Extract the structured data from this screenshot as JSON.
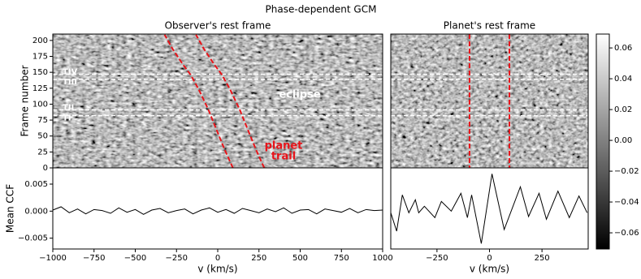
{
  "title": "Phase-dependent GCM",
  "chart_data": [
    {
      "type": "heatmap",
      "title": "Observer's rest frame",
      "ylabel": "Frame number",
      "xlim": [
        -1000,
        1000
      ],
      "ylim": [
        0,
        210
      ],
      "yticks": [
        0,
        25,
        50,
        75,
        100,
        125,
        150,
        175,
        200
      ],
      "markers": [
        {
          "label": "TIV",
          "value": 147
        },
        {
          "label": "TIII",
          "value": 139
        },
        {
          "label": "TII",
          "value": 91
        },
        {
          "label": "TI",
          "value": 82
        }
      ],
      "trail": {
        "color": "#e8141a",
        "frames": [
          0,
          28,
          59,
          91,
          123,
          146,
          163,
          186,
          209
        ],
        "velocity": [
          187,
          138,
          89,
          39,
          -20,
          -69,
          -118,
          -177,
          -227
        ]
      },
      "trail_offsets": [
        -95,
        95
      ],
      "annotations": {
        "eclipse": "eclipse",
        "planet_trail": [
          "planet",
          "trail"
        ]
      }
    },
    {
      "type": "line",
      "ylabel": "Mean CCF",
      "xlabel": "v (km/s)",
      "color": "#000000",
      "xlim": [
        -1000,
        1000
      ],
      "xticks": [
        {
          "value": -1000,
          "label": "−1000"
        },
        {
          "value": -750,
          "label": "−750"
        },
        {
          "value": -500,
          "label": "−500"
        },
        {
          "value": -250,
          "label": "−250"
        },
        0,
        250,
        500,
        750,
        1000
      ],
      "ylim": [
        -0.007,
        0.008
      ],
      "yticks": [
        {
          "value": -0.005,
          "label": "−0.005"
        },
        {
          "value": 0,
          "label": "0.000"
        },
        0.005
      ],
      "x": [
        -1000,
        -950,
        -900,
        -850,
        -800,
        -750,
        -700,
        -650,
        -600,
        -550,
        -500,
        -450,
        -400,
        -350,
        -300,
        -250,
        -200,
        -150,
        -100,
        -50,
        0,
        50,
        100,
        150,
        200,
        250,
        300,
        350,
        400,
        450,
        500,
        550,
        600,
        650,
        700,
        750,
        800,
        850,
        900,
        950,
        1000
      ],
      "values": [
        0.0002,
        0.0008,
        -0.0003,
        0.0004,
        -0.0005,
        0.0003,
        0.0001,
        -0.0004,
        0.0006,
        -0.0002,
        0.0003,
        -0.0006,
        0.0002,
        0.0005,
        -0.0003,
        0.0001,
        0.0004,
        -0.0005,
        0.0002,
        0.0006,
        -0.0002,
        0.0003,
        -0.0004,
        0.0005,
        0.0001,
        -0.0003,
        0.0004,
        -0.0001,
        0.0006,
        -0.0004,
        0.0002,
        0.0003,
        -0.0005,
        0.0004,
        0.0001,
        -0.0002,
        0.0005,
        -0.0003,
        0.0003,
        0.0001,
        0.0002
      ]
    },
    {
      "type": "heatmap",
      "title": "Planet's rest frame",
      "xlim": [
        -470,
        470
      ],
      "ylim": [
        0,
        210
      ],
      "lines": {
        "color": "#e8141a",
        "values": [
          -95,
          95
        ]
      }
    },
    {
      "type": "line",
      "xlabel": "v (km/s)",
      "color": "#000000",
      "xlim": [
        -470,
        470
      ],
      "xticks": [
        {
          "value": -250,
          "label": "−250"
        },
        0,
        250
      ],
      "ylim": [
        -0.007,
        0.008
      ],
      "x": [
        -470,
        -442,
        -415,
        -384,
        -353,
        -337,
        -310,
        -260,
        -229,
        -182,
        -136,
        -105,
        -85,
        -39,
        12,
        70,
        147,
        186,
        236,
        271,
        326,
        380,
        426,
        465
      ],
      "values": [
        -0.0003,
        -0.0037,
        0.003,
        -0.0003,
        0.0021,
        -0.0003,
        0.0009,
        -0.0012,
        0.0018,
        0.0,
        0.0033,
        -0.0012,
        0.003,
        -0.006,
        0.0069,
        -0.0034,
        0.0045,
        -0.001,
        0.0033,
        -0.0015,
        0.0037,
        -0.0012,
        0.0028,
        -0.0003
      ]
    },
    {
      "type": "colorbar",
      "clim": [
        -0.0705,
        0.069
      ],
      "ticks": [
        {
          "value": -0.06,
          "label": "−0.06"
        },
        {
          "value": -0.04,
          "label": "−0.04"
        },
        {
          "value": -0.02,
          "label": "−0.02"
        },
        {
          "value": 0,
          "label": "0.00"
        },
        0.02,
        0.04,
        0.06
      ]
    }
  ]
}
